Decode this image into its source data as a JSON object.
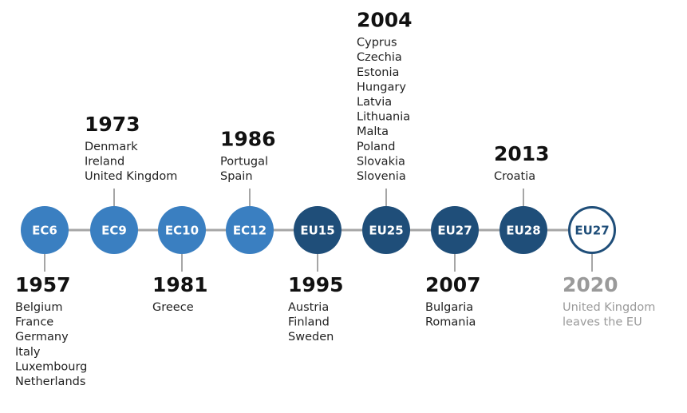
{
  "nodes": [
    {
      "label": "EC6",
      "year": "1957",
      "countries": [
        "Belgium",
        "France",
        "Germany",
        "Italy",
        "Luxembourg",
        "Netherlands"
      ]
    },
    {
      "label": "EC9",
      "year": "1973",
      "countries": [
        "Denmark",
        "Ireland",
        "United Kingdom"
      ]
    },
    {
      "label": "EC10",
      "year": "1981",
      "countries": [
        "Greece"
      ]
    },
    {
      "label": "EC12",
      "year": "1986",
      "countries": [
        "Portugal",
        "Spain"
      ]
    },
    {
      "label": "EU15",
      "year": "1995",
      "countries": [
        "Austria",
        "Finland",
        "Sweden"
      ]
    },
    {
      "label": "EU25",
      "year": "2004",
      "countries": [
        "Cyprus",
        "Czechia",
        "Estonia",
        "Hungary",
        "Latvia",
        "Lithuania",
        "Malta",
        "Poland",
        "Slovakia",
        "Slovenia"
      ]
    },
    {
      "label": "EU27",
      "year": "2007",
      "countries": [
        "Bulgaria",
        "Romania"
      ]
    },
    {
      "label": "EU28",
      "year": "2013",
      "countries": [
        "Croatia"
      ]
    },
    {
      "label": "EU27",
      "year": "2020",
      "countries": [
        "United Kingdom",
        "leaves the EU"
      ]
    }
  ]
}
